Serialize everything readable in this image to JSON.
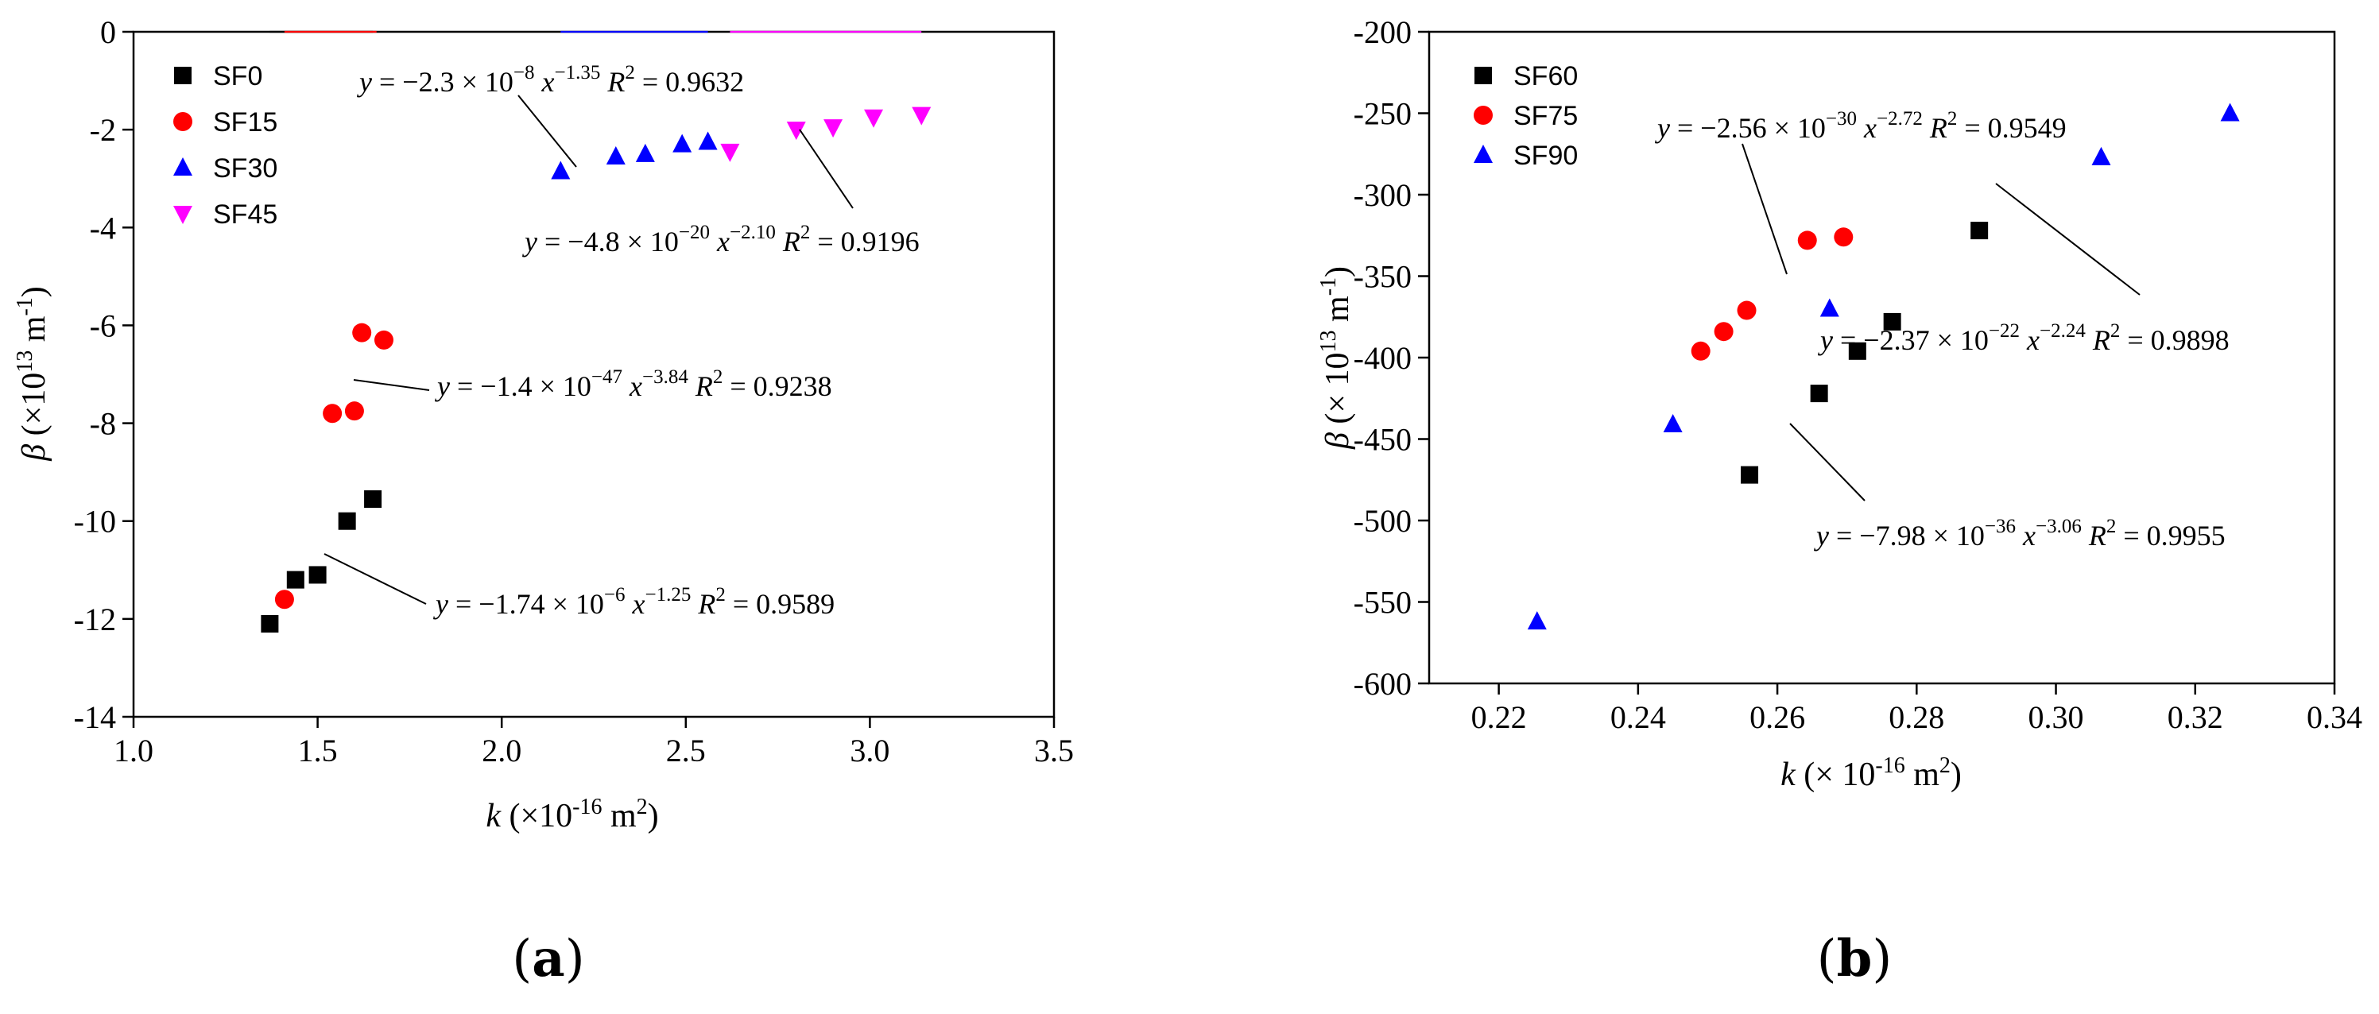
{
  "chart_data": [
    {
      "panel": "(a)",
      "type": "scatter",
      "xlabel": "k (×10-16 m2)",
      "ylabel": "β (×1013 m-1)",
      "xlim": [
        1.0,
        3.5
      ],
      "ylim": [
        -14,
        0
      ],
      "xticks": [
        "1.0",
        "1.5",
        "2.0",
        "2.5",
        "3.0",
        "3.5"
      ],
      "yticks": [
        "0",
        "-2",
        "-4",
        "-6",
        "-8",
        "-10",
        "-12",
        "-14"
      ],
      "legend_position": "top-left",
      "series": [
        {
          "name": "SF0",
          "marker": "square",
          "color": "#000000",
          "x": [
            1.37,
            1.44,
            1.5,
            1.58,
            1.65
          ],
          "y": [
            -12.1,
            -11.2,
            -11.1,
            -10.0,
            -9.55
          ],
          "fit": {
            "a": -1.74e-06,
            "b": -1.25,
            "x_range": [
              1.37,
              1.65
            ]
          },
          "equation": {
            "text": "y = −1.74 × 10",
            "exp": "−6",
            "xpow": "−1.25",
            "r2": "R2 = 0.9589"
          }
        },
        {
          "name": "SF15",
          "marker": "circle",
          "color": "#ff0000",
          "x": [
            1.41,
            1.54,
            1.6,
            1.62,
            1.68
          ],
          "y": [
            -11.6,
            -7.8,
            -7.75,
            -6.15,
            -6.3
          ],
          "fit": {
            "a": -1.4e-47,
            "b": -3.84,
            "x_range": [
              1.41,
              1.66
            ]
          },
          "equation": {
            "text": "y = −1.4 × 10",
            "exp": "−47",
            "xpow": "−3.84",
            "r2": "R2 = 0.9238"
          }
        },
        {
          "name": "SF30",
          "marker": "triangle-up",
          "color": "#0000ff",
          "x": [
            2.16,
            2.31,
            2.39,
            2.49,
            2.56
          ],
          "y": [
            -2.85,
            -2.55,
            -2.5,
            -2.3,
            -2.25
          ],
          "fit": {
            "a": -2.3e-08,
            "b": -1.35,
            "x_range": [
              2.16,
              2.56
            ]
          },
          "equation": {
            "text": "y = −2.3 × 10",
            "exp": "−8",
            "xpow": "−1.35",
            "r2": "R2 = 0.9632"
          }
        },
        {
          "name": "SF45",
          "marker": "triangle-down",
          "color": "#ff00ff",
          "x": [
            2.62,
            2.8,
            2.9,
            3.01,
            3.14
          ],
          "y": [
            -2.45,
            -2.0,
            -1.95,
            -1.75,
            -1.7
          ],
          "fit": {
            "a": -4.8e-20,
            "b": -2.1,
            "x_range": [
              2.62,
              3.14
            ]
          },
          "equation": {
            "text": "y = −4.8 × 10",
            "exp": "−20",
            "xpow": "−2.10",
            "r2": "R2 = 0.9196"
          }
        }
      ]
    },
    {
      "panel": "(b)",
      "type": "scatter",
      "xlabel": "k (× 10-16 m2)",
      "ylabel": "β (× 1013 m-1)",
      "xlim": [
        0.21,
        0.34
      ],
      "ylim": [
        -600,
        -200
      ],
      "xticks": [
        "0.22",
        "0.24",
        "0.26",
        "0.28",
        "0.30",
        "0.32",
        "0.34"
      ],
      "yticks": [
        "-200",
        "-250",
        "-300",
        "-350",
        "-400",
        "-450",
        "-500",
        "-550",
        "-600"
      ],
      "legend_position": "top-left",
      "series": [
        {
          "name": "SF60",
          "marker": "square",
          "color": "#000000",
          "x": [
            0.256,
            0.266,
            0.2715,
            0.2765,
            0.289
          ],
          "y": [
            -472,
            -422,
            -396,
            -378,
            -322
          ],
          "fit": {
            "a": -7.98e-36,
            "b": -3.06,
            "x_range": [
              0.256,
              0.289
            ]
          },
          "equation": {
            "text": "y = −7.98 × 10",
            "exp": "−36",
            "xpow": "−3.06",
            "r2": "R2 = 0.9955"
          }
        },
        {
          "name": "SF75",
          "marker": "circle",
          "color": "#ff0000",
          "x": [
            0.249,
            0.2523,
            0.2556,
            0.2643,
            0.2695
          ],
          "y": [
            -396,
            -384,
            -371,
            -328,
            -326
          ],
          "fit": {
            "a": -2.56e-30,
            "b": -2.72,
            "x_range": [
              0.249,
              0.2695
            ]
          },
          "equation": {
            "text": "y = −2.56 × 10",
            "exp": "−30",
            "xpow": "−2.72",
            "r2": "R2 = 0.9549"
          }
        },
        {
          "name": "SF90",
          "marker": "triangle-up",
          "color": "#0000ff",
          "x": [
            0.2255,
            0.245,
            0.2675,
            0.3065,
            0.325
          ],
          "y": [
            -562,
            -441,
            -370,
            -277,
            -250
          ],
          "fit": {
            "a": -2.37e-22,
            "b": -2.24,
            "x_range": [
              0.2255,
              0.325
            ]
          },
          "equation": {
            "text": "y = −2.37 × 10",
            "exp": "−22",
            "xpow": "−2.24",
            "r2": "R2 = 0.9898"
          }
        }
      ]
    }
  ]
}
